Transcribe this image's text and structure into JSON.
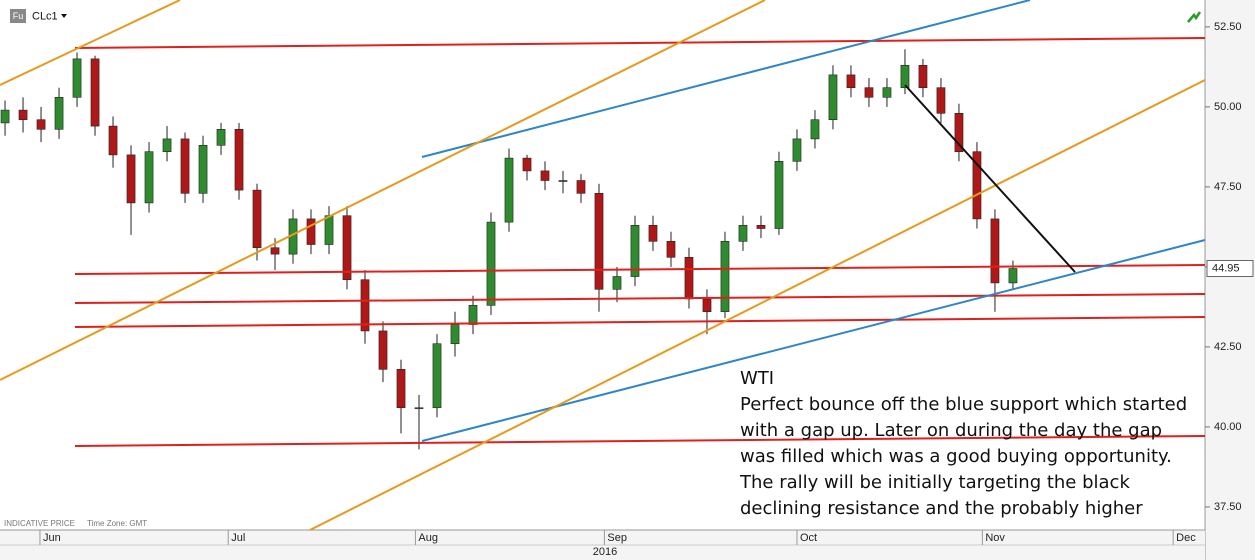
{
  "chart_data": {
    "type": "candlestick",
    "symbol": "CLc1",
    "source_badge": "Fu",
    "footer": [
      "INDICATIVE PRICE",
      "Time Zone: GMT"
    ],
    "year_label": "2016",
    "up_color": "#2e8b2e",
    "down_color": "#b01818",
    "grid": false,
    "xlim": [
      -0.28,
      66.67
    ],
    "xticks": [
      {
        "value": 1.94,
        "label": "Jun"
      },
      {
        "value": 12.4,
        "label": "Jul"
      },
      {
        "value": 22.8,
        "label": "Aug"
      },
      {
        "value": 33.3,
        "label": "Sep"
      },
      {
        "value": 44.0,
        "label": "Oct"
      },
      {
        "value": 54.3,
        "label": "Nov"
      },
      {
        "value": 64.9,
        "label": "Dec"
      }
    ],
    "ylim": [
      36.78,
      53.34
    ],
    "yticks": [
      {
        "value": 52.5,
        "label": "52.50"
      },
      {
        "value": 50,
        "label": "50.00"
      },
      {
        "value": 47.5,
        "label": "47.50"
      },
      {
        "value": 45,
        "label": "45.00"
      },
      {
        "value": 42.5,
        "label": "42.50"
      },
      {
        "value": 40,
        "label": "40.00"
      },
      {
        "value": 37.5,
        "label": "37.50"
      }
    ],
    "open": [
      49.5,
      49.9,
      49.6,
      49.3,
      50.3,
      51.5,
      49.4,
      48.5,
      47.0,
      48.6,
      49.0,
      47.3,
      48.8,
      49.3,
      47.4,
      45.6,
      45.4,
      46.5,
      45.7,
      46.6,
      44.6,
      43.0,
      41.8,
      40.6,
      40.6,
      42.6,
      43.2,
      43.8,
      46.4,
      48.4,
      48.0,
      47.7,
      47.7,
      47.3,
      44.3,
      44.7,
      46.3,
      45.8,
      45.3,
      44.0,
      43.6,
      45.8,
      46.3,
      46.2,
      48.3,
      49.0,
      49.6,
      51.0,
      50.6,
      50.3,
      50.6,
      51.3,
      50.6,
      49.8,
      48.6,
      46.5,
      44.5
    ],
    "high": [
      50.2,
      50.3,
      50.0,
      50.6,
      51.7,
      51.6,
      49.7,
      48.8,
      48.9,
      49.4,
      49.2,
      49.1,
      49.5,
      49.5,
      47.6,
      45.9,
      46.8,
      46.8,
      46.9,
      46.9,
      44.9,
      43.3,
      42.1,
      41.0,
      42.9,
      43.6,
      44.1,
      46.7,
      48.7,
      48.5,
      48.3,
      48.0,
      47.9,
      47.6,
      45.0,
      46.6,
      46.6,
      46.1,
      45.6,
      44.3,
      46.1,
      46.6,
      46.6,
      48.6,
      49.3,
      49.9,
      51.3,
      51.3,
      50.9,
      50.9,
      51.8,
      51.5,
      50.9,
      50.1,
      48.9,
      46.8,
      45.2
    ],
    "low": [
      49.1,
      49.2,
      48.9,
      49.0,
      50.0,
      49.1,
      48.1,
      46.0,
      46.7,
      48.3,
      47.0,
      47.0,
      48.5,
      47.1,
      45.2,
      44.9,
      45.1,
      45.4,
      45.4,
      44.3,
      42.6,
      41.4,
      39.8,
      39.3,
      40.3,
      42.2,
      42.9,
      43.5,
      46.1,
      47.7,
      47.4,
      47.3,
      47.0,
      43.6,
      43.9,
      44.4,
      45.5,
      45.0,
      43.7,
      42.9,
      43.4,
      45.5,
      45.9,
      46.0,
      48.0,
      48.7,
      49.3,
      50.3,
      50.0,
      50.0,
      50.4,
      50.3,
      49.5,
      48.3,
      46.2,
      43.6,
      44.3
    ],
    "close": [
      49.9,
      49.6,
      49.3,
      50.3,
      51.5,
      49.4,
      48.5,
      47.0,
      48.6,
      49.0,
      47.3,
      48.8,
      49.3,
      47.4,
      45.6,
      45.4,
      46.5,
      45.7,
      46.6,
      44.6,
      43.0,
      41.8,
      40.6,
      40.6,
      42.6,
      43.2,
      43.8,
      46.4,
      48.4,
      48.0,
      47.7,
      47.7,
      47.3,
      44.3,
      44.7,
      46.3,
      45.8,
      45.3,
      44.0,
      43.6,
      45.8,
      46.3,
      46.2,
      48.3,
      49.0,
      49.6,
      51.0,
      50.6,
      50.3,
      50.6,
      51.3,
      50.6,
      49.8,
      48.6,
      46.5,
      44.5,
      44.95
    ],
    "annotation": [
      "WTI",
      "Perfect bounce off the blue support which started",
      "with a gap up. Later on during the day the gap",
      "was filled which was a good buying opportunity.",
      "The rally will be initially targeting the black",
      "declining resistance and the probably higher"
    ]
  }
}
